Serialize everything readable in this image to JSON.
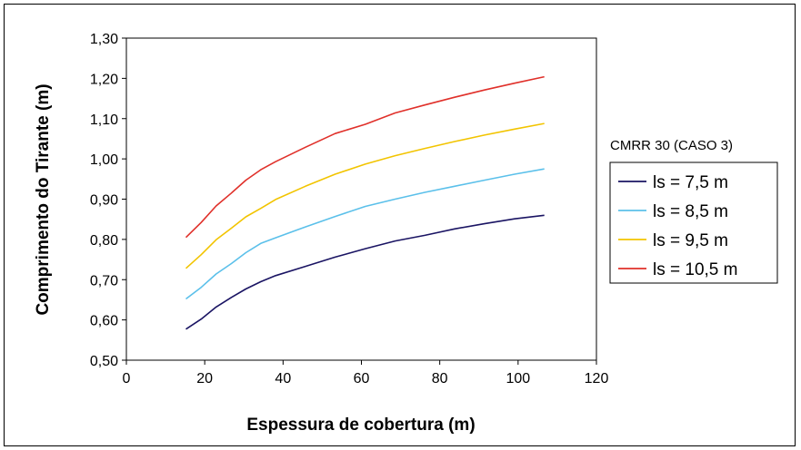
{
  "chart_data": {
    "type": "line",
    "xlabel": "Espessura de cobertura (m)",
    "ylabel": "Comprimento do Tirante (m)",
    "xlim": [
      0,
      120
    ],
    "ylim": [
      0.5,
      1.3
    ],
    "x_ticks": [
      "0",
      "20",
      "40",
      "60",
      "80",
      "100",
      "120"
    ],
    "y_ticks": [
      "0,50",
      "0,60",
      "0,70",
      "0,80",
      "0,90",
      "1,00",
      "1,10",
      "1,20",
      "1,30"
    ],
    "legend_title": "CMRR 30 (CASO 3)",
    "legend_position": "right",
    "grid": false,
    "series": [
      {
        "name": "ls = 7,5 m",
        "color": "#1a1463",
        "x": [
          15.2,
          19.1,
          22.9,
          26.8,
          30.5,
          34.3,
          38.1,
          45.7,
          53.3,
          61.0,
          68.6,
          76.2,
          83.8,
          91.4,
          99.1,
          106.7
        ],
        "y": [
          0.577,
          0.602,
          0.632,
          0.656,
          0.677,
          0.695,
          0.71,
          0.733,
          0.756,
          0.777,
          0.796,
          0.81,
          0.826,
          0.839,
          0.851,
          0.86
        ]
      },
      {
        "name": "ls = 8,5 m",
        "color": "#5bc0ea",
        "x": [
          15.2,
          19.1,
          22.9,
          26.8,
          30.5,
          34.3,
          38.1,
          45.7,
          53.3,
          61.0,
          68.6,
          76.2,
          83.8,
          91.4,
          99.1,
          106.7
        ],
        "y": [
          0.652,
          0.681,
          0.714,
          0.74,
          0.767,
          0.79,
          0.804,
          0.831,
          0.857,
          0.882,
          0.9,
          0.917,
          0.932,
          0.947,
          0.962,
          0.975
        ]
      },
      {
        "name": "ls = 9,5 m",
        "color": "#f2c400",
        "x": [
          15.2,
          19.1,
          22.9,
          26.8,
          30.5,
          34.3,
          38.1,
          45.7,
          53.3,
          61.0,
          68.6,
          76.2,
          83.8,
          91.4,
          99.1,
          106.7
        ],
        "y": [
          0.728,
          0.762,
          0.799,
          0.828,
          0.856,
          0.877,
          0.899,
          0.932,
          0.962,
          0.987,
          1.008,
          1.026,
          1.043,
          1.059,
          1.074,
          1.088
        ]
      },
      {
        "name": "ls = 10,5 m",
        "color": "#e0302a",
        "x": [
          15.2,
          19.1,
          22.9,
          26.8,
          30.5,
          34.3,
          38.1,
          45.7,
          53.3,
          61.0,
          68.6,
          76.2,
          83.8,
          91.4,
          99.1,
          106.7
        ],
        "y": [
          0.805,
          0.842,
          0.883,
          0.915,
          0.947,
          0.973,
          0.993,
          1.029,
          1.063,
          1.086,
          1.114,
          1.134,
          1.153,
          1.171,
          1.188,
          1.204
        ]
      }
    ]
  }
}
